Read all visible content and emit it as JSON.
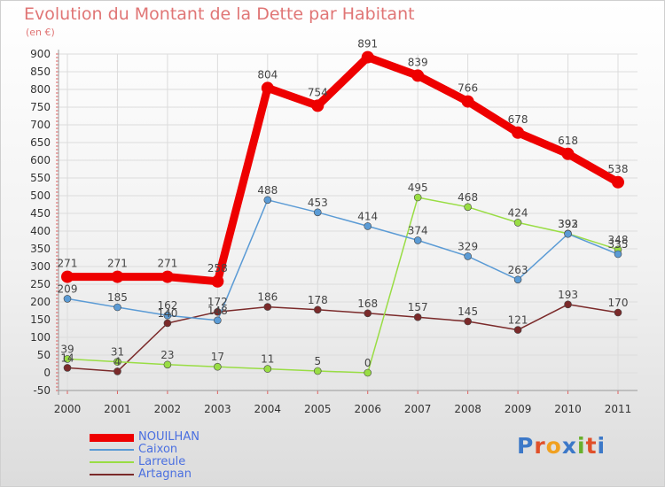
{
  "title": "Evolution du Montant de la Dette par Habitant",
  "subtitle": "(en €)",
  "logo": {
    "text": "Proxiti",
    "letters": [
      "P",
      "r",
      "o",
      "x",
      "i",
      "t",
      "i"
    ]
  },
  "chart_data": {
    "type": "line",
    "x": [
      "2000",
      "2001",
      "2002",
      "2003",
      "2004",
      "2005",
      "2006",
      "2007",
      "2008",
      "2009",
      "2010",
      "2011"
    ],
    "ylim": [
      -50,
      900
    ],
    "yticks": [
      -50,
      0,
      50,
      100,
      150,
      200,
      250,
      300,
      350,
      400,
      450,
      500,
      550,
      600,
      650,
      700,
      750,
      800,
      850,
      900
    ],
    "grid": true,
    "legend_position": "bottom-left",
    "series": [
      {
        "name": "NOUILHAN",
        "color": "#ee0000",
        "values": [
          271,
          271,
          271,
          258,
          804,
          754,
          891,
          839,
          766,
          678,
          618,
          538
        ],
        "labels": [
          "271",
          "271",
          "271",
          "258",
          "804",
          "754",
          "891",
          "839",
          "766",
          "678",
          "618",
          "538"
        ]
      },
      {
        "name": "Caixon",
        "color": "#5b9bd5",
        "values": [
          209,
          185,
          162,
          148,
          488,
          453,
          414,
          374,
          329,
          263,
          392,
          335
        ],
        "labels": [
          "209",
          "185",
          "162",
          "148",
          "488",
          "453",
          "414",
          "374",
          "329",
          "263",
          "392",
          "335"
        ]
      },
      {
        "name": "Larreule",
        "color": "#99dd44",
        "values": [
          39,
          31,
          23,
          17,
          11,
          5,
          0,
          495,
          468,
          424,
          393,
          348
        ],
        "labels": [
          "39",
          "31",
          "23",
          "17",
          "11",
          "5",
          "0",
          "495",
          "468",
          "424",
          "393",
          "348"
        ]
      },
      {
        "name": "Artagnan",
        "color": "#7b2a2a",
        "values": [
          14,
          4,
          140,
          172,
          186,
          178,
          168,
          157,
          145,
          121,
          193,
          170
        ],
        "labels": [
          "14",
          "4",
          "140",
          "172",
          "186",
          "178",
          "168",
          "157",
          "145",
          "121",
          "193",
          "170"
        ]
      }
    ]
  }
}
